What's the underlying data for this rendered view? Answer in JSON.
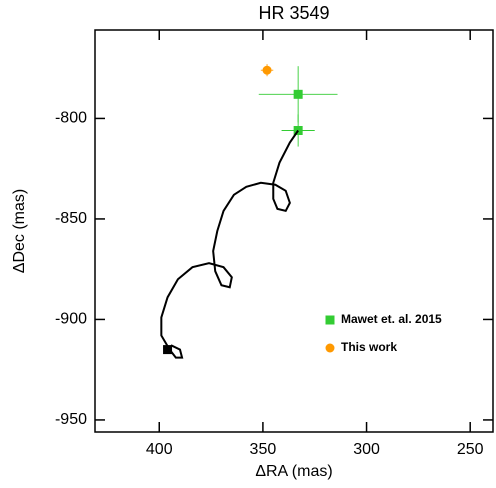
{
  "chart_data": {
    "type": "scatter",
    "title": "HR 3549",
    "xlabel": "ΔRA (mas)",
    "ylabel": "ΔDec (mas)",
    "xlim": [
      431,
      239
    ],
    "ylim": [
      -956,
      -756
    ],
    "xticks": [
      400,
      350,
      300,
      250
    ],
    "yticks": [
      -800,
      -850,
      -900,
      -950
    ],
    "legend": "lower right",
    "series": [
      {
        "name": "Mawet et. al. 2015",
        "color": "#33cc33",
        "marker": "square",
        "x": [
          333,
          333
        ],
        "y": [
          -788,
          -806
        ],
        "xerr": [
          19,
          8
        ],
        "yerr": [
          14,
          8
        ]
      },
      {
        "name": "This work",
        "color": "#ff9900",
        "marker": "circle",
        "x": [
          348
        ],
        "y": [
          -776
        ],
        "xerr": [
          3
        ],
        "yerr": [
          3
        ]
      },
      {
        "color": "#000000",
        "marker": "line",
        "x": [
          333,
          337,
          342,
          345,
          345,
          343,
          339,
          337,
          339,
          344,
          351,
          358,
          364,
          369,
          372,
          374,
          373,
          370,
          366,
          365,
          369,
          376,
          384,
          391,
          396,
          399,
          399,
          395,
          392,
          389,
          390,
          394,
          396
        ],
        "y": [
          -806,
          -812,
          -822,
          -832,
          -840,
          -845,
          -846,
          -842,
          -836,
          -833,
          -832,
          -834,
          -838,
          -846,
          -856,
          -866,
          -876,
          -883,
          -884,
          -879,
          -874,
          -872,
          -874,
          -880,
          -889,
          -899,
          -908,
          -915,
          -919,
          -919,
          -915,
          -913,
          -915
        ]
      },
      {
        "color": "#000000",
        "marker": "square",
        "x": [
          396
        ],
        "y": [
          -915
        ]
      }
    ]
  }
}
